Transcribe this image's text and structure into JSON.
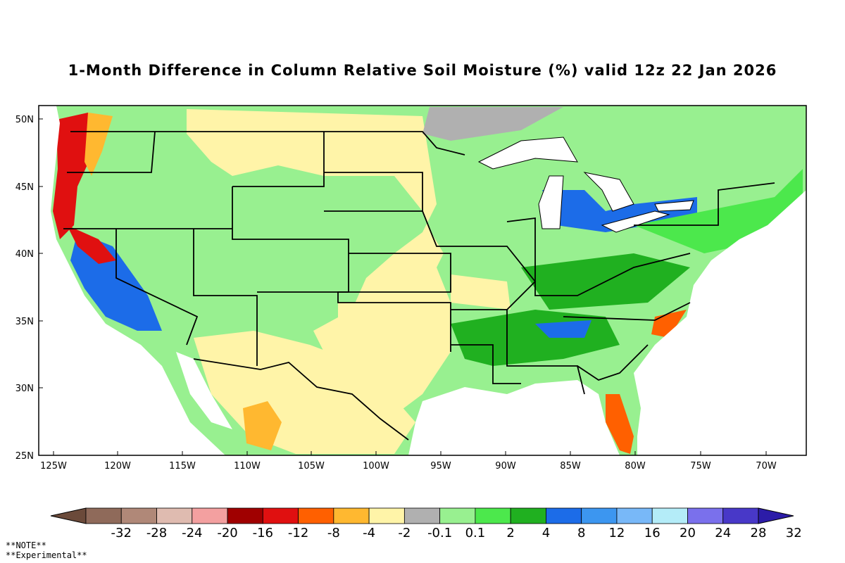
{
  "title": "1-Month Difference in Column Relative Soil Moisture (%) valid 12z 22 Jan 2026",
  "axes": {
    "lat_ticks": [
      "50N",
      "45N",
      "40N",
      "35N",
      "30N",
      "25N"
    ],
    "lon_ticks": [
      "125W",
      "120W",
      "115W",
      "110W",
      "105W",
      "100W",
      "95W",
      "90W",
      "85W",
      "80W",
      "75W",
      "70W"
    ]
  },
  "colorbar": {
    "labels": [
      "-32",
      "-28",
      "-24",
      "-20",
      "-16",
      "-12",
      "-8",
      "-4",
      "-2",
      "-0.1",
      "0.1",
      "2",
      "4",
      "8",
      "12",
      "16",
      "20",
      "24",
      "28",
      "32"
    ],
    "colors": [
      "#6b4a3a",
      "#8f6a5a",
      "#b08878",
      "#dfbbb0",
      "#f3a0a0",
      "#a00000",
      "#e01010",
      "#ff6000",
      "#ffb830",
      "#fff4a8",
      "#b0b0b0",
      "#98f090",
      "#4ce84c",
      "#20b020",
      "#1c6ce8",
      "#3c96f0",
      "#78b8f8",
      "#b4ecf8",
      "#7a70ec",
      "#4838c8",
      "#2c1ca8"
    ]
  },
  "notes": {
    "line1": "**NOTE**",
    "line2": "**Experimental**"
  },
  "map_regions": {
    "base": "#98f090",
    "dry": "#fff4a8",
    "mild_dry": "#ffb830",
    "very_dry": "#e01010",
    "wet": "#4ce84c",
    "very_wet": "#1c6ce8",
    "neutral": "#b0b0b0",
    "lake": "#ffffff"
  }
}
